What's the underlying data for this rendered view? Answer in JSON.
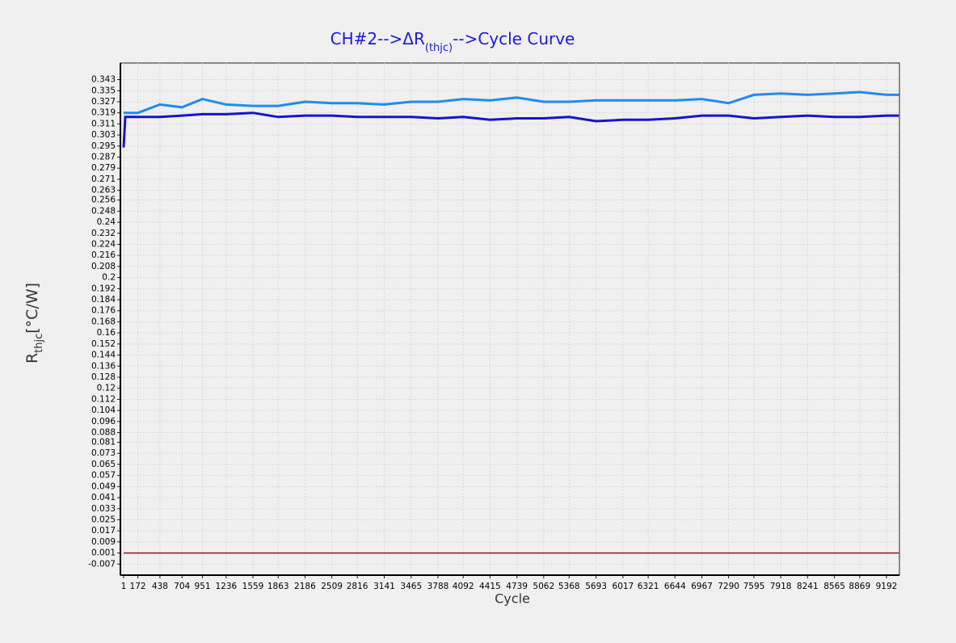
{
  "chart_data": {
    "type": "line",
    "title": [
      "CH#2-->ΔR",
      "(thjc)",
      "-->Cycle Curve"
    ],
    "y_label": [
      "R",
      "thjc",
      "[°C/W]"
    ],
    "x_label": "Cycle",
    "x": [
      1,
      20,
      172,
      438,
      704,
      951,
      1236,
      1559,
      1863,
      2186,
      2509,
      2816,
      3141,
      3465,
      3788,
      4092,
      4415,
      4739,
      5062,
      5368,
      5693,
      6017,
      6321,
      6644,
      6967,
      7290,
      7595,
      7918,
      8241,
      8565,
      8869,
      9192,
      9340
    ],
    "series": [
      {
        "color": "#1e8cf0",
        "values": [
          0.319,
          0.319,
          0.319,
          0.325,
          0.323,
          0.329,
          0.325,
          0.324,
          0.324,
          0.327,
          0.326,
          0.326,
          0.325,
          0.327,
          0.327,
          0.329,
          0.328,
          0.33,
          0.327,
          0.327,
          0.328,
          0.328,
          0.328,
          0.328,
          0.329,
          0.326,
          0.332,
          0.333,
          0.332,
          0.333,
          0.334,
          0.332,
          0.332
        ]
      },
      {
        "color": "#1414d2",
        "values": [
          0.294,
          0.316,
          0.316,
          0.316,
          0.317,
          0.318,
          0.318,
          0.319,
          0.316,
          0.317,
          0.317,
          0.316,
          0.316,
          0.316,
          0.315,
          0.316,
          0.314,
          0.315,
          0.315,
          0.316,
          0.313,
          0.314,
          0.314,
          0.315,
          0.317,
          0.317,
          0.315,
          0.316,
          0.317,
          0.316,
          0.316,
          0.317,
          0.317
        ]
      },
      {
        "color": "#8b1a0a",
        "values": [
          0.001,
          0.001,
          0.001,
          0.001,
          0.001,
          0.001,
          0.001,
          0.001,
          0.001,
          0.001,
          0.001,
          0.001,
          0.001,
          0.001,
          0.001,
          0.001,
          0.001,
          0.001,
          0.001,
          0.001,
          0.001,
          0.001,
          0.001,
          0.001,
          0.001,
          0.001,
          0.001,
          0.001,
          0.001,
          0.001,
          0.001,
          0.001,
          0.001
        ]
      }
    ],
    "xlim": [
      -38,
      9348
    ],
    "xticks": [
      1,
      172,
      438,
      704,
      951,
      1236,
      1559,
      1863,
      2186,
      2509,
      2816,
      3141,
      3465,
      3788,
      4092,
      4415,
      4739,
      5062,
      5368,
      5693,
      6017,
      6321,
      6644,
      6967,
      7290,
      7595,
      7918,
      8241,
      8565,
      8869,
      9192
    ],
    "ylim": [
      -0.015,
      0.355
    ],
    "yticks": [
      0.343,
      0.335,
      0.327,
      0.319,
      0.311,
      0.303,
      0.295,
      0.287,
      0.279,
      0.271,
      0.263,
      0.256,
      0.248,
      0.24,
      0.232,
      0.224,
      0.216,
      0.208,
      0.2,
      0.192,
      0.184,
      0.176,
      0.168,
      0.16,
      0.152,
      0.144,
      0.136,
      0.128,
      0.12,
      0.112,
      0.104,
      0.096,
      0.088,
      0.081,
      0.073,
      0.065,
      0.057,
      0.049,
      0.041,
      0.033,
      0.025,
      0.017,
      0.009,
      0.001,
      -0.007
    ],
    "grid": true
  }
}
